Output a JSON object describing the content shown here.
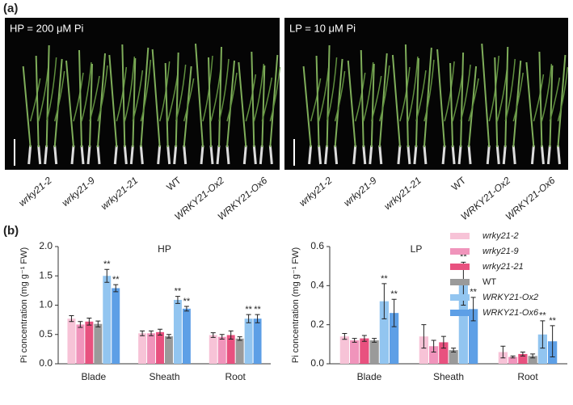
{
  "panels": {
    "a": "(a)",
    "b": "(b)"
  },
  "photos": [
    {
      "label": "HP = 200 μM Pi",
      "genotypes": [
        "wrky21-2",
        "wrky21-9",
        "wrky21-21",
        "WT",
        "WRKY21-Ox2",
        "WRKY21-Ox6"
      ]
    },
    {
      "label": "LP = 10 μM Pi",
      "genotypes": [
        "wrky21-2",
        "wrky21-9",
        "wrky21-21",
        "WT",
        "WRKY21-Ox2",
        "WRKY21-Ox6"
      ]
    }
  ],
  "chart_data": [
    {
      "type": "bar",
      "title": "HP",
      "y_label": "Pi concentration (mg g⁻¹ FW)",
      "categories": [
        "Blade",
        "Sheath",
        "Root"
      ],
      "ylim": [
        0,
        2
      ],
      "yticks": [
        {
          "value": 0,
          "label": "0.0"
        },
        0.5,
        {
          "value": 1,
          "label": "1.0"
        },
        1.5,
        {
          "value": 2,
          "label": "2.0"
        }
      ],
      "series": [
        {
          "color": "#f7c3d7",
          "values": [
            0.77,
            0.52,
            0.49
          ],
          "errors": [
            0.05,
            0.04,
            0.04
          ]
        },
        {
          "color": "#f094bb",
          "values": [
            0.67,
            0.52,
            0.46
          ],
          "errors": [
            0.05,
            0.04,
            0.04
          ]
        },
        {
          "color": "#e8517f",
          "values": [
            0.72,
            0.54,
            0.49
          ],
          "errors": [
            0.06,
            0.05,
            0.07
          ]
        },
        {
          "color": "#9a9a9a",
          "values": [
            0.68,
            0.47,
            0.43
          ],
          "errors": [
            0.05,
            0.03,
            0.03
          ]
        },
        {
          "color": "#92c5f0",
          "values": [
            1.5,
            1.09,
            0.77
          ],
          "errors": [
            0.11,
            0.06,
            0.07
          ],
          "annotations": [
            "**",
            "**",
            "**"
          ]
        },
        {
          "color": "#5d9fe6",
          "values": [
            1.29,
            0.94,
            0.77
          ],
          "errors": [
            0.06,
            0.04,
            0.07
          ],
          "annotations": [
            "**",
            "**",
            "**"
          ]
        }
      ]
    },
    {
      "type": "bar",
      "title": "LP",
      "y_label": "Pi concentration (mg g⁻¹ FW)",
      "categories": [
        "Blade",
        "Sheath",
        "Root"
      ],
      "ylim": [
        0,
        0.6
      ],
      "yticks": [
        {
          "value": 0,
          "label": "0.0"
        },
        0.2,
        0.4,
        0.6
      ],
      "series": [
        {
          "name": "wrky21-2",
          "color": "#f7c3d7",
          "values": [
            0.14,
            0.14,
            0.06
          ],
          "errors": [
            0.015,
            0.06,
            0.03
          ]
        },
        {
          "name": "wrky21-9",
          "color": "#f094bb",
          "values": [
            0.12,
            0.09,
            0.035
          ],
          "errors": [
            0.01,
            0.03,
            0.005
          ]
        },
        {
          "name": "wrky21-21",
          "color": "#e8517f",
          "values": [
            0.13,
            0.11,
            0.05
          ],
          "errors": [
            0.015,
            0.03,
            0.01
          ]
        },
        {
          "name": "WT",
          "color": "#9a9a9a",
          "values": [
            0.12,
            0.07,
            0.04
          ],
          "errors": [
            0.01,
            0.01,
            0.01
          ]
        },
        {
          "name": "WRKY21-Ox2",
          "color": "#92c5f0",
          "values": [
            0.32,
            0.41,
            0.15
          ],
          "errors": [
            0.09,
            0.11,
            0.07
          ],
          "annotations": [
            "**",
            "**",
            "**"
          ]
        },
        {
          "name": "WRKY21-Ox6",
          "color": "#5d9fe6",
          "values": [
            0.26,
            0.28,
            0.115
          ],
          "errors": [
            0.07,
            0.06,
            0.08
          ],
          "annotations": [
            "**",
            "**",
            "**"
          ]
        }
      ]
    }
  ]
}
